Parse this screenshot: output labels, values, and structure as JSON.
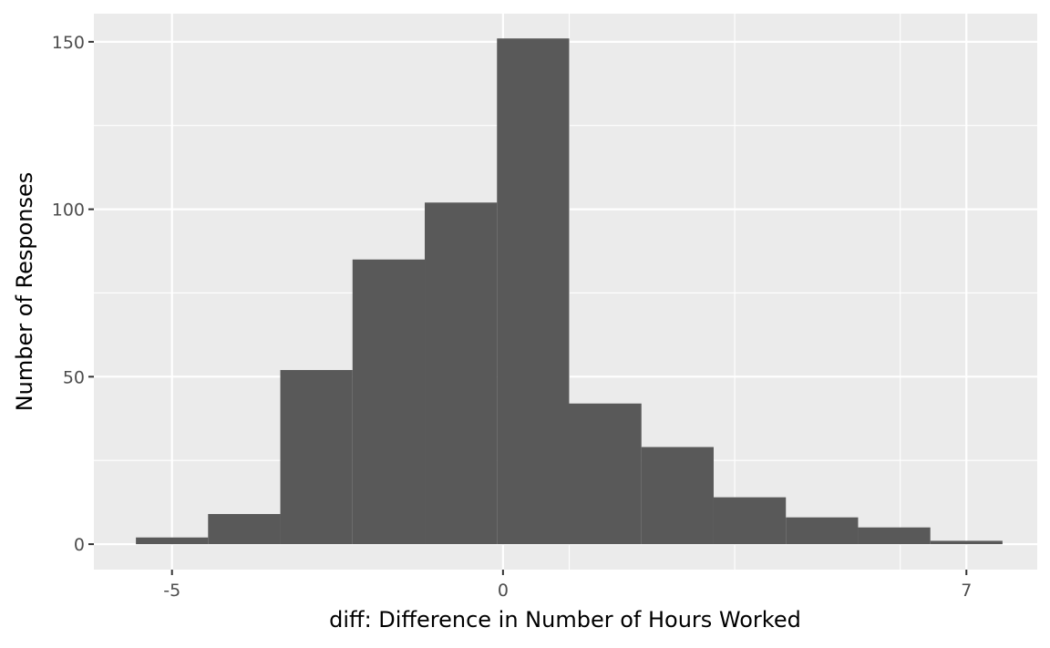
{
  "chart_data": {
    "type": "bar",
    "subtype": "histogram",
    "title": "",
    "xlabel": "diff: Difference in Number of Hours Worked",
    "ylabel": "Number of Responses",
    "bin_edges": [
      -5.545,
      -4.455,
      -3.364,
      -2.273,
      -1.182,
      -0.091,
      1.0,
      2.091,
      3.182,
      4.273,
      5.364,
      6.455,
      7.545
    ],
    "values": [
      2,
      9,
      52,
      85,
      102,
      151,
      42,
      29,
      14,
      8,
      5,
      1
    ],
    "xlim": [
      -6.18,
      8.07
    ],
    "ylim": [
      -7.6,
      158.4
    ],
    "x_ticks": [
      -5,
      0,
      7
    ],
    "x_tick_labels": [
      "-5",
      "0",
      "7"
    ],
    "x_minor_gridlines": [
      1,
      3.5,
      6
    ],
    "y_ticks": [
      0,
      50,
      100,
      150
    ],
    "y_tick_labels": [
      "0",
      "50",
      "100",
      "150"
    ],
    "y_minor_gridlines": [
      25,
      75,
      125
    ],
    "grid": true,
    "colors": {
      "bar": "#595959",
      "panel": "#ebebeb",
      "grid": "#ffffff"
    }
  }
}
